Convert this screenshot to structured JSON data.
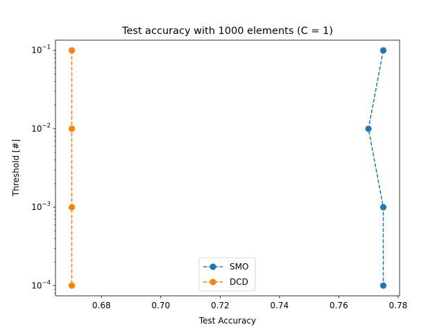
{
  "chart_data": {
    "type": "line",
    "title": "Test accuracy with 1000 elements (C = 1)",
    "xlabel": "Test Accuracy",
    "ylabel": "Threshold [#]",
    "xlim": [
      0.6645,
      0.7805
    ],
    "ylim_log10": [
      -4.13,
      -0.87
    ],
    "yscale": "log",
    "x_ticks": [
      {
        "value": 0.68,
        "label": "0.68"
      },
      {
        "value": 0.7,
        "label": "0.70"
      },
      {
        "value": 0.72,
        "label": "0.72"
      },
      {
        "value": 0.74,
        "label": "0.74"
      },
      {
        "value": 0.76,
        "label": "0.76"
      },
      {
        "value": 0.78,
        "label": "0.78"
      }
    ],
    "y_ticks": [
      {
        "value": 0.0001,
        "base": "10",
        "exp": "−4"
      },
      {
        "value": 0.001,
        "base": "10",
        "exp": "−3"
      },
      {
        "value": 0.01,
        "base": "10",
        "exp": "−2"
      },
      {
        "value": 0.1,
        "base": "10",
        "exp": "−1"
      }
    ],
    "grid": false,
    "legend_position": "lower-center",
    "series": [
      {
        "name": "SMO",
        "color": "#1f77b4",
        "line_style": "dashed",
        "marker": "circle",
        "points": [
          {
            "x": 0.775,
            "y": 0.1
          },
          {
            "x": 0.77,
            "y": 0.01
          },
          {
            "x": 0.775,
            "y": 0.001
          },
          {
            "x": 0.775,
            "y": 0.0001
          }
        ]
      },
      {
        "name": "DCD",
        "color": "#ff7f0e",
        "line_style": "dashed",
        "marker": "circle",
        "points": [
          {
            "x": 0.67,
            "y": 0.1
          },
          {
            "x": 0.67,
            "y": 0.01
          },
          {
            "x": 0.67,
            "y": 0.001
          },
          {
            "x": 0.67,
            "y": 0.0001
          }
        ]
      }
    ]
  }
}
